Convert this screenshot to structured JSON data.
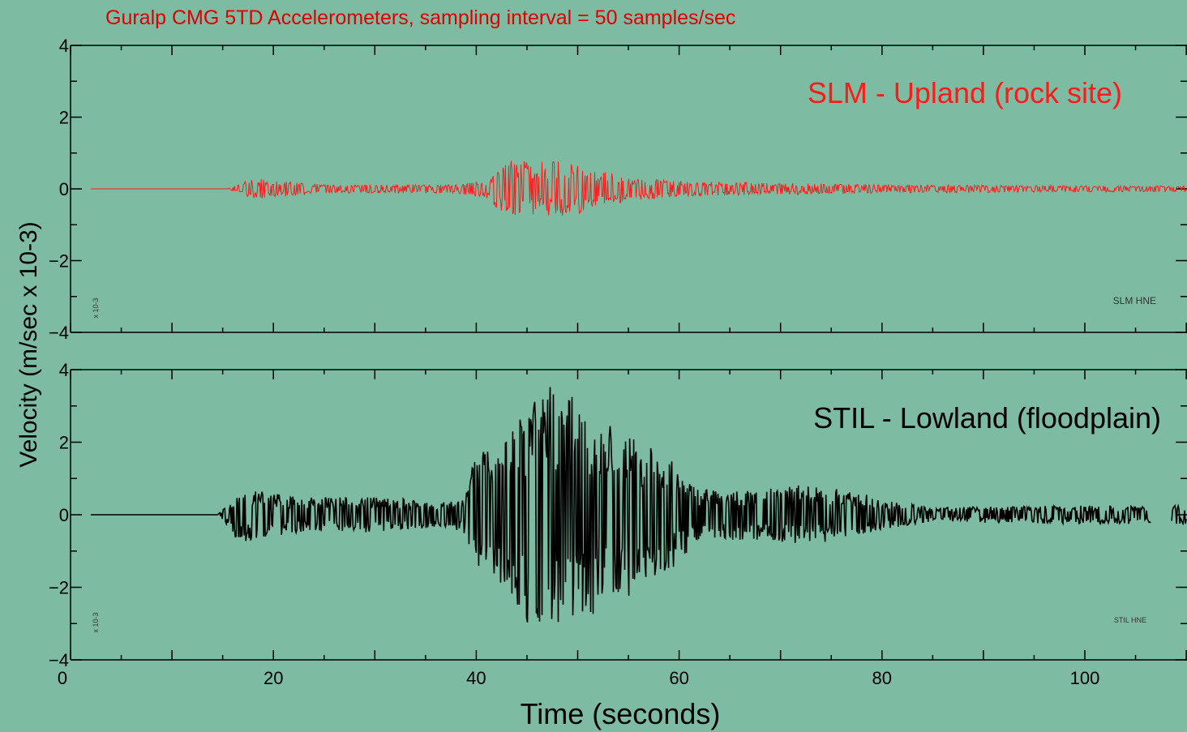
{
  "title": "Guralp CMG 5TD Accelerometers, sampling interval = 50 samples/sec",
  "ylabel": "Velocity (m/sec x 10-3)",
  "xlabel": "Time (seconds)",
  "colors": {
    "background": "#7dbba2",
    "title": "#e00000",
    "slm_trace": "#ff1a1a",
    "stil_trace": "#000000"
  },
  "chart_data": [
    {
      "type": "line",
      "panel_label": "SLM - Upland (rock site)",
      "station_tag": "SLM   HNE",
      "scale_tag": "x 10-3",
      "xlim": [
        0,
        110
      ],
      "ylim": [
        -4,
        4
      ],
      "x_ticks": [
        0,
        20,
        40,
        60,
        80,
        100
      ],
      "y_ticks": [
        -4,
        -2,
        0,
        2,
        4
      ],
      "series": [
        {
          "envelope": [
            {
              "t": 0,
              "amp": 0.0
            },
            {
              "t": 15.5,
              "amp": 0.0
            },
            {
              "t": 16.5,
              "amp": 0.15
            },
            {
              "t": 18,
              "amp": 0.3
            },
            {
              "t": 21,
              "amp": 0.22
            },
            {
              "t": 25,
              "amp": 0.12
            },
            {
              "t": 38,
              "amp": 0.12
            },
            {
              "t": 41,
              "amp": 0.25
            },
            {
              "t": 43,
              "amp": 0.8
            },
            {
              "t": 47,
              "amp": 0.75
            },
            {
              "t": 49,
              "amp": 0.8
            },
            {
              "t": 52,
              "amp": 0.5
            },
            {
              "t": 56,
              "amp": 0.3
            },
            {
              "t": 62,
              "amp": 0.2
            },
            {
              "t": 80,
              "amp": 0.12
            },
            {
              "t": 110,
              "amp": 0.08
            }
          ]
        }
      ]
    },
    {
      "type": "line",
      "panel_label": "STIL - Lowland (floodplain)",
      "station_tag": "STIL   HNE",
      "scale_tag": "x 10-3",
      "xlim": [
        0,
        110
      ],
      "ylim": [
        -4,
        4
      ],
      "x_ticks": [
        0,
        20,
        40,
        60,
        80,
        100
      ],
      "x_tick_labels": [
        "0",
        "20",
        "40",
        "60",
        "80",
        "100"
      ],
      "y_ticks": [
        -4,
        -2,
        0,
        2,
        4
      ],
      "y_tick_labels": [
        "-4",
        "-2",
        "0",
        "2",
        "4"
      ],
      "gap": [
        106.5,
        108.5
      ],
      "series": [
        {
          "envelope": [
            {
              "t": 0,
              "amp": 0.0
            },
            {
              "t": 14.5,
              "amp": 0.0
            },
            {
              "t": 15.5,
              "amp": 0.3
            },
            {
              "t": 16.5,
              "amp": 0.8
            },
            {
              "t": 18,
              "amp": 0.7
            },
            {
              "t": 22,
              "amp": 0.5
            },
            {
              "t": 30,
              "amp": 0.5
            },
            {
              "t": 37,
              "amp": 0.35
            },
            {
              "t": 39,
              "amp": 0.6
            },
            {
              "t": 40,
              "amp": 1.8
            },
            {
              "t": 42,
              "amp": 2.2
            },
            {
              "t": 44,
              "amp": 2.5
            },
            {
              "t": 46,
              "amp": 3.6
            },
            {
              "t": 48,
              "amp": 3.5
            },
            {
              "t": 50,
              "amp": 3.2
            },
            {
              "t": 52,
              "amp": 2.6
            },
            {
              "t": 55,
              "amp": 2.3
            },
            {
              "t": 58,
              "amp": 1.8
            },
            {
              "t": 60,
              "amp": 1.3
            },
            {
              "t": 62,
              "amp": 0.7
            },
            {
              "t": 68,
              "amp": 0.7
            },
            {
              "t": 72,
              "amp": 0.85
            },
            {
              "t": 78,
              "amp": 0.6
            },
            {
              "t": 80,
              "amp": 0.4
            },
            {
              "t": 85,
              "amp": 0.2
            },
            {
              "t": 95,
              "amp": 0.25
            },
            {
              "t": 110,
              "amp": 0.25
            }
          ]
        }
      ]
    }
  ]
}
